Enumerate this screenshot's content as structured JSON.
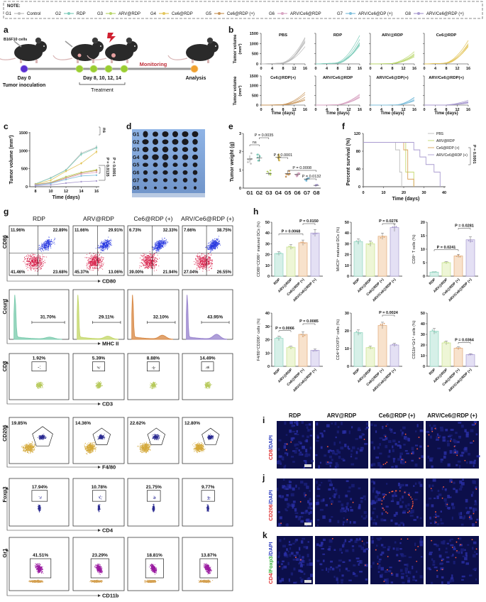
{
  "note": {
    "label": "NOTE:",
    "groups": [
      {
        "id": "G1",
        "name": "Control",
        "color": "#bdbdbd"
      },
      {
        "id": "G2",
        "name": "RDP",
        "color": "#7fcdbb"
      },
      {
        "id": "G3",
        "name": "ARV@RDP",
        "color": "#b9d66a"
      },
      {
        "id": "G4",
        "name": "Ce6@RDP",
        "color": "#e3c55a"
      },
      {
        "id": "G5",
        "name": "Ce6@RDP (+)",
        "color": "#c8955a"
      },
      {
        "id": "G6",
        "name": "ARV/Ce6@RDP",
        "color": "#d9a6c4"
      },
      {
        "id": "G7",
        "name": "ARV/Ce6@DP (+)",
        "color": "#7fbfdc"
      },
      {
        "id": "G8",
        "name": "ARV/Ce6@RDP (+)",
        "color": "#a99bd0"
      }
    ]
  },
  "panel_labels": {
    "a": "a",
    "b": "b",
    "c": "c",
    "d": "d",
    "e": "e",
    "f": "f",
    "g": "g",
    "h": "h",
    "i": "i",
    "j": "j",
    "k": "k"
  },
  "panel_a": {
    "cells": "B16F10 cells",
    "day0": "Day 0",
    "inoculation": "Tumor inoculation",
    "treatment_days": "Day 8, 10, 12, 14",
    "treatment": "Treatment",
    "monitoring": "Monitoring",
    "analysis": "Analysis"
  },
  "panel_d": {
    "rows": [
      "G1",
      "G2",
      "G3",
      "G4",
      "G5",
      "G6",
      "G7",
      "G8"
    ]
  },
  "chart_data": [
    {
      "panel": "b",
      "type": "line",
      "ylabel": "Tumor volume",
      "ylabel_unit": "(mm³)",
      "xlabel": "Time (days)",
      "xticks": [
        0,
        4,
        8,
        12,
        16
      ],
      "yticks": [
        0,
        500,
        1000,
        1500
      ],
      "xlim": [
        0,
        16
      ],
      "ylim": [
        0,
        1500
      ],
      "subplots": [
        {
          "title": "PBS",
          "color": "#bdbdbd",
          "final_volumes": [
            1300,
            1150,
            1100,
            1050,
            850,
            1250
          ]
        },
        {
          "title": "RDP",
          "color": "#7fcdbb",
          "final_volumes": [
            1400,
            1200,
            1000,
            950,
            900,
            1050
          ]
        },
        {
          "title": "ARV@RDP",
          "color": "#b9d66a",
          "final_volumes": [
            600,
            500,
            450,
            400,
            350
          ]
        },
        {
          "title": "Ce6@RDP",
          "color": "#e3c55a",
          "final_volumes": [
            1150,
            1000,
            900,
            950,
            850
          ]
        },
        {
          "title": "Ce6@RDP(+)",
          "color": "#c8955a",
          "final_volumes": [
            650,
            550,
            400,
            300,
            250
          ]
        },
        {
          "title": "ARV/Ce6@RDP",
          "color": "#d9a6c4",
          "final_volumes": [
            560,
            520,
            450,
            400,
            380
          ]
        },
        {
          "title": "ARV/Ce6@DP(+)",
          "color": "#7fbfdc",
          "final_volumes": [
            400,
            380,
            300,
            250,
            220
          ]
        },
        {
          "title": "ARV/Ce6@RDP(+)",
          "color": "#a99bd0",
          "final_volumes": [
            250,
            180,
            150,
            120,
            100
          ]
        }
      ]
    },
    {
      "panel": "c",
      "type": "line",
      "ylabel": "Tumor volume (mm³)",
      "xlabel": "Time (days)",
      "x": [
        8,
        10,
        12,
        14,
        16
      ],
      "xticks": [
        8,
        10,
        12,
        14,
        16
      ],
      "yticks": [
        0,
        500,
        1000,
        1500
      ],
      "ylim": [
        0,
        1500
      ],
      "series": [
        {
          "name": "G1",
          "values": [
            80,
            250,
            470,
            930,
            1100
          ]
        },
        {
          "name": "G2",
          "values": [
            80,
            240,
            460,
            900,
            1080
          ]
        },
        {
          "name": "G3",
          "values": [
            60,
            120,
            280,
            400,
            470
          ]
        },
        {
          "name": "G4",
          "values": [
            70,
            180,
            430,
            650,
            970
          ]
        },
        {
          "name": "G5",
          "values": [
            60,
            110,
            250,
            380,
            450
          ]
        },
        {
          "name": "G6",
          "values": [
            50,
            100,
            230,
            350,
            400
          ]
        },
        {
          "name": "G7",
          "values": [
            40,
            90,
            200,
            300,
            320
          ]
        },
        {
          "name": "G8",
          "values": [
            30,
            50,
            100,
            140,
            160
          ]
        }
      ],
      "annotations": [
        "ns",
        "P = 0.0135",
        "P < 0.0001"
      ]
    },
    {
      "panel": "e",
      "type": "scatter",
      "ylabel": "Tumor weight (g)",
      "categories": [
        "G1",
        "G2",
        "G3",
        "G4",
        "G5",
        "G6",
        "G7",
        "G8"
      ],
      "values": [
        1.6,
        1.65,
        0.8,
        1.7,
        0.8,
        0.75,
        0.5,
        0.15
      ],
      "yticks": [
        0,
        1,
        2,
        3
      ],
      "ylim": [
        0,
        3
      ],
      "annotations": [
        {
          "text": "ns",
          "from": 0,
          "to": 1
        },
        {
          "text": "P = 0.0035",
          "from": 1,
          "to": 2
        },
        {
          "text": "P < 0.0001",
          "from": 3,
          "to": 4
        },
        {
          "text": "P = 0.0008",
          "from": 4,
          "to": 7
        },
        {
          "text": "P = 0.0132",
          "from": 6,
          "to": 7
        }
      ]
    },
    {
      "panel": "f",
      "type": "line",
      "ylabel": "Percent survival (%)",
      "xlabel": "Time (days)",
      "xticks": [
        0,
        10,
        20,
        30,
        40
      ],
      "yticks": [
        0,
        40,
        80,
        120
      ],
      "xlim": [
        0,
        40
      ],
      "ylim": [
        0,
        120
      ],
      "series": [
        {
          "name": "PBS",
          "color": "#bdbdbd",
          "points": [
            [
              0,
              100
            ],
            [
              16,
              100
            ],
            [
              16,
              83
            ],
            [
              18,
              83
            ],
            [
              18,
              33
            ],
            [
              19,
              33
            ],
            [
              19,
              0
            ]
          ]
        },
        {
          "name": "ARV@RDP",
          "color": "#c5d86d",
          "points": [
            [
              0,
              100
            ],
            [
              21,
              100
            ],
            [
              21,
              33
            ],
            [
              25,
              33
            ],
            [
              25,
              0
            ]
          ]
        },
        {
          "name": "Ce6@RDP (+)",
          "color": "#d9a35a",
          "points": [
            [
              0,
              100
            ],
            [
              20,
              100
            ],
            [
              20,
              83
            ],
            [
              22,
              83
            ],
            [
              22,
              17
            ],
            [
              25,
              17
            ],
            [
              25,
              0
            ]
          ]
        },
        {
          "name": "ARV/Ce6@RDP (+)",
          "color": "#a99bd0",
          "points": [
            [
              0,
              100
            ],
            [
              25,
              100
            ],
            [
              25,
              83
            ],
            [
              28,
              83
            ],
            [
              28,
              67
            ],
            [
              31,
              67
            ],
            [
              31,
              50
            ],
            [
              35,
              50
            ],
            [
              35,
              33
            ],
            [
              38,
              33
            ],
            [
              38,
              0
            ]
          ]
        }
      ],
      "annotations": [
        "P = 0.0001"
      ]
    },
    {
      "panel": "h",
      "type": "bar",
      "ylabel": "CD80⁺CD86⁺ matured DCs (%)",
      "categories": [
        "RDP",
        "ARV@RDP",
        "Ce6@RDP (+)",
        "ARV/Ce6@RDP (+)"
      ],
      "values": [
        21,
        27,
        31,
        40
      ],
      "yticks": [
        0,
        10,
        20,
        30,
        40,
        50
      ],
      "ylim": [
        0,
        50
      ],
      "annotations": [
        {
          "text": "P = 0.0068",
          "from": 0,
          "to": 2
        },
        {
          "text": "P = 0.0150",
          "from": 2,
          "to": 3
        }
      ]
    },
    {
      "panel": "h",
      "type": "bar",
      "ylabel": "MHCII⁺ matured DCs (%)",
      "categories": [
        "RDP",
        "ARV@RDP",
        "Ce6@RDP (+)",
        "ARV/Ce6@RDP (+)"
      ],
      "values": [
        32,
        30,
        37,
        45
      ],
      "yticks": [
        0,
        10,
        20,
        30,
        40,
        50
      ],
      "ylim": [
        0,
        50
      ],
      "annotations": [
        {
          "text": "P = 0.0276",
          "from": 2,
          "to": 3
        }
      ]
    },
    {
      "panel": "h",
      "type": "bar",
      "ylabel": "CD8⁺ T cells (%)",
      "categories": [
        "RDP",
        "ARV@RDP",
        "Ce6@RDP (+)",
        "ARV/Ce6@RDP (+)"
      ],
      "values": [
        1.5,
        5,
        7.5,
        13.5
      ],
      "yticks": [
        0,
        5,
        10,
        15,
        20
      ],
      "ylim": [
        0,
        20
      ],
      "annotations": [
        {
          "text": "P = 0.0241",
          "from": 0,
          "to": 2
        },
        {
          "text": "P = 0.0281",
          "from": 2,
          "to": 3
        }
      ]
    },
    {
      "panel": "h",
      "type": "bar",
      "ylabel": "F4/80⁺CD206⁺ cells (%)",
      "categories": [
        "RDP",
        "ARV@RDP",
        "Ce6@RDP (+)",
        "ARV/Ce6@RDP (+)"
      ],
      "values": [
        21,
        14,
        24,
        12
      ],
      "yticks": [
        0,
        10,
        20,
        30,
        40
      ],
      "ylim": [
        0,
        40
      ],
      "annotations": [
        {
          "text": "P = 0.0066",
          "from": 0,
          "to": 1
        },
        {
          "text": "P = 0.0085",
          "from": 2,
          "to": 3
        }
      ]
    },
    {
      "panel": "h",
      "type": "bar",
      "ylabel": "CD4⁺FOXP3⁺ cells (%)",
      "categories": [
        "RDP",
        "ARV@RDP",
        "Ce6@RDP (+)",
        "ARV/Ce6@RDP (+)"
      ],
      "values": [
        19,
        10.5,
        23,
        12
      ],
      "yticks": [
        0,
        10,
        20,
        30
      ],
      "ylim": [
        0,
        30
      ],
      "annotations": [
        {
          "text": "P = 0.0024",
          "from": 2,
          "to": 3
        }
      ]
    },
    {
      "panel": "h",
      "type": "bar",
      "ylabel": "CD11b⁺Gr1⁺ cells (%)",
      "categories": [
        "RDP",
        "ARV@RDP",
        "Ce6@RDP (+)",
        "ARV/Ce6@RDP (+)"
      ],
      "values": [
        33,
        22,
        17,
        11
      ],
      "yticks": [
        0,
        10,
        20,
        30,
        40,
        50
      ],
      "ylim": [
        0,
        50
      ],
      "annotations": [
        {
          "text": "P = 0.0364",
          "from": 2,
          "to": 3
        }
      ]
    }
  ],
  "bar_colors": {
    "fill": [
      "#d6f0e8",
      "#eef6d6",
      "#f8e2cc",
      "#e4e0f4"
    ],
    "stroke": [
      "#8fd3bf",
      "#c5df8a",
      "#e0a877",
      "#a99bd0"
    ]
  },
  "panel_g": {
    "columns": [
      "RDP",
      "ARV@RDP",
      "Ce6@RDP (+)",
      "ARV/Ce6@RDP (+)"
    ],
    "rows": [
      {
        "x_axis": "CD80",
        "y_axis": "CD86",
        "kind": "quadrant",
        "values": [
          [
            "11.96%",
            "22.89%",
            "41.46%",
            "23.68%"
          ],
          [
            "11.66%",
            "29.91%",
            "45.37%",
            "13.06%"
          ],
          [
            "6.73%",
            "32.33%",
            "39.00%",
            "21.94%"
          ],
          [
            "7.66%",
            "38.75%",
            "27.04%",
            "26.55%"
          ]
        ]
      },
      {
        "x_axis": "MHC II",
        "y_axis": "Count",
        "kind": "histogram",
        "values": [
          "31.70%",
          "29.11%",
          "32.10%",
          "43.95%"
        ],
        "colors": [
          "#7fcdb0",
          "#c5d86d",
          "#d98c4a",
          "#9b87cf"
        ]
      },
      {
        "x_axis": "CD3",
        "y_axis": "CD8",
        "kind": "gate",
        "values": [
          "1.92%",
          "5.39%",
          "8.88%",
          "14.49%"
        ]
      },
      {
        "x_axis": "F4/80",
        "y_axis": "CD206",
        "kind": "pentagon",
        "values": [
          "19.85%",
          "14.36%",
          "22.62%",
          "12.80%"
        ]
      },
      {
        "x_axis": "CD4",
        "y_axis": "Foxp3",
        "kind": "gate",
        "values": [
          "17.94%",
          "10.78%",
          "21.75%",
          "9.77%"
        ]
      },
      {
        "x_axis": "CD11b",
        "y_axis": "Gr1",
        "kind": "gate",
        "values": [
          "41.51%",
          "23.29%",
          "18.81%",
          "13.87%"
        ]
      }
    ]
  },
  "panel_ijk": {
    "columns": [
      "RDP",
      "ARV@RDP",
      "Ce6@RDP (+)",
      "ARV/Ce6@RDP (+)"
    ],
    "rows": [
      {
        "label": "i",
        "stain": [
          {
            "text": "CD8",
            "color": "#e03030"
          },
          {
            "text": "/DAPI",
            "color": "#3040c0"
          }
        ]
      },
      {
        "label": "j",
        "stain": [
          {
            "text": "CD206",
            "color": "#e03030"
          },
          {
            "text": "/DAPI",
            "color": "#3040c0"
          }
        ]
      },
      {
        "label": "k",
        "stain": [
          {
            "text": "CD4",
            "color": "#e03030"
          },
          {
            "text": "/Foxp3",
            "color": "#30b030"
          },
          {
            "text": "/DAPI",
            "color": "#3040c0"
          }
        ]
      }
    ]
  }
}
